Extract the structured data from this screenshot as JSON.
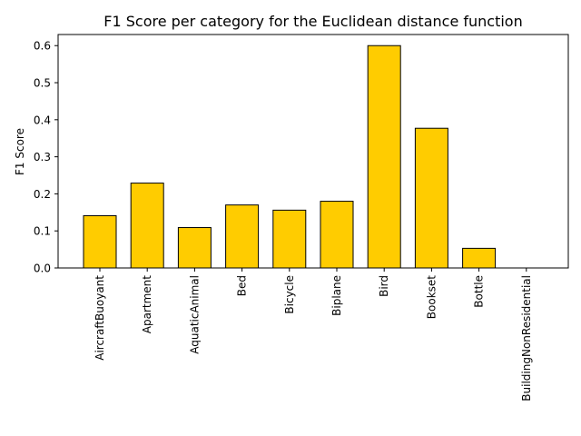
{
  "chart_data": {
    "type": "bar",
    "title": "F1 Score per category for the Euclidean distance function",
    "xlabel": "",
    "ylabel": "F1 Score",
    "categories": [
      "AircraftBuoyant",
      "Apartment",
      "AquaticAnimal",
      "Bed",
      "Bicycle",
      "Biplane",
      "Bird",
      "Bookset",
      "Bottle",
      "BuildingNonResidential"
    ],
    "values": [
      0.141,
      0.229,
      0.109,
      0.17,
      0.156,
      0.18,
      0.6,
      0.377,
      0.053,
      0.0
    ],
    "ylim": [
      0,
      0.63
    ],
    "yticks": [
      "0.0",
      "0.1",
      "0.2",
      "0.3",
      "0.4",
      "0.5",
      "0.6"
    ],
    "bar_color": "#ffcc00",
    "edge_color": "#000000",
    "grid": false,
    "legend": "none"
  }
}
